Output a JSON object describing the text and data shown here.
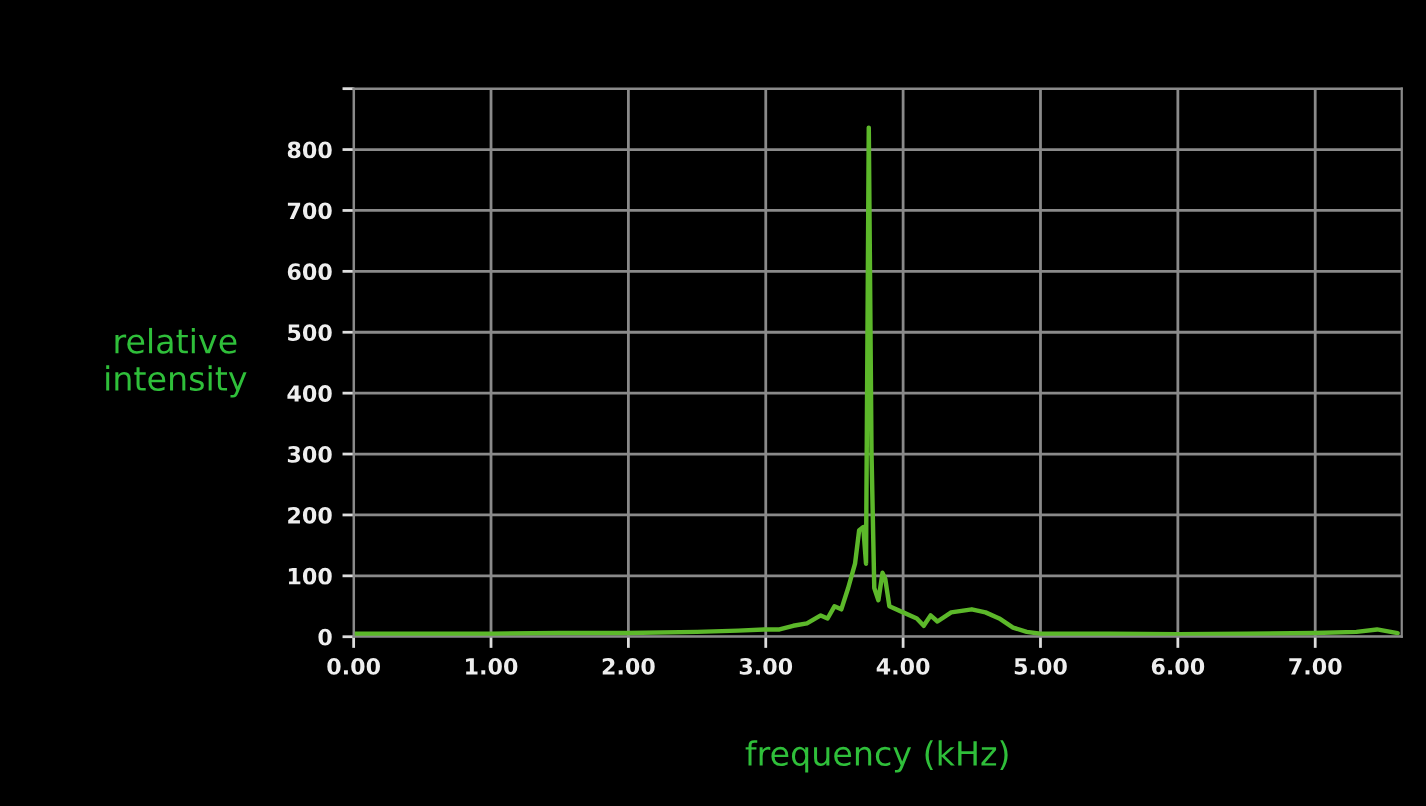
{
  "chart_data": {
    "type": "line",
    "xlabel": "frequency (kHz)",
    "ylabel": "relative\nintensity",
    "x": [
      0,
      0.5,
      1.0,
      1.5,
      2.0,
      2.5,
      2.8,
      3.0,
      3.1,
      3.2,
      3.3,
      3.4,
      3.45,
      3.5,
      3.55,
      3.6,
      3.65,
      3.68,
      3.71,
      3.73,
      3.75,
      3.77,
      3.79,
      3.82,
      3.85,
      3.87,
      3.9,
      4.0,
      4.1,
      4.15,
      4.2,
      4.25,
      4.35,
      4.5,
      4.6,
      4.7,
      4.8,
      4.9,
      5.0,
      5.5,
      6.0,
      6.5,
      7.0,
      7.3,
      7.45,
      7.6
    ],
    "series": [
      {
        "color": "#5cb82a",
        "values": [
          5,
          5,
          5,
          6,
          6,
          8,
          10,
          12,
          12,
          18,
          22,
          35,
          30,
          50,
          45,
          80,
          120,
          175,
          180,
          120,
          836,
          300,
          80,
          60,
          105,
          95,
          50,
          40,
          30,
          18,
          35,
          25,
          40,
          45,
          40,
          30,
          15,
          8,
          5,
          5,
          4,
          5,
          6,
          8,
          12,
          6
        ]
      }
    ],
    "xlim": [
      0,
      7.63
    ],
    "ylim": [
      0,
      900
    ],
    "xticks": [
      {
        "value": 0,
        "label": "0.00"
      },
      {
        "value": 1,
        "label": "1.00"
      },
      {
        "value": 2,
        "label": "2.00"
      },
      {
        "value": 3,
        "label": "3.00"
      },
      {
        "value": 4,
        "label": "4.00"
      },
      {
        "value": 5,
        "label": "5.00"
      },
      {
        "value": 6,
        "label": "6.00"
      },
      {
        "value": 7,
        "label": "7.00"
      }
    ],
    "yticks": [
      0,
      100,
      200,
      300,
      400,
      500,
      600,
      700,
      800,
      {
        "value": 900,
        "label": null
      }
    ],
    "grid": true,
    "marker": "none",
    "line_style": "solid"
  }
}
